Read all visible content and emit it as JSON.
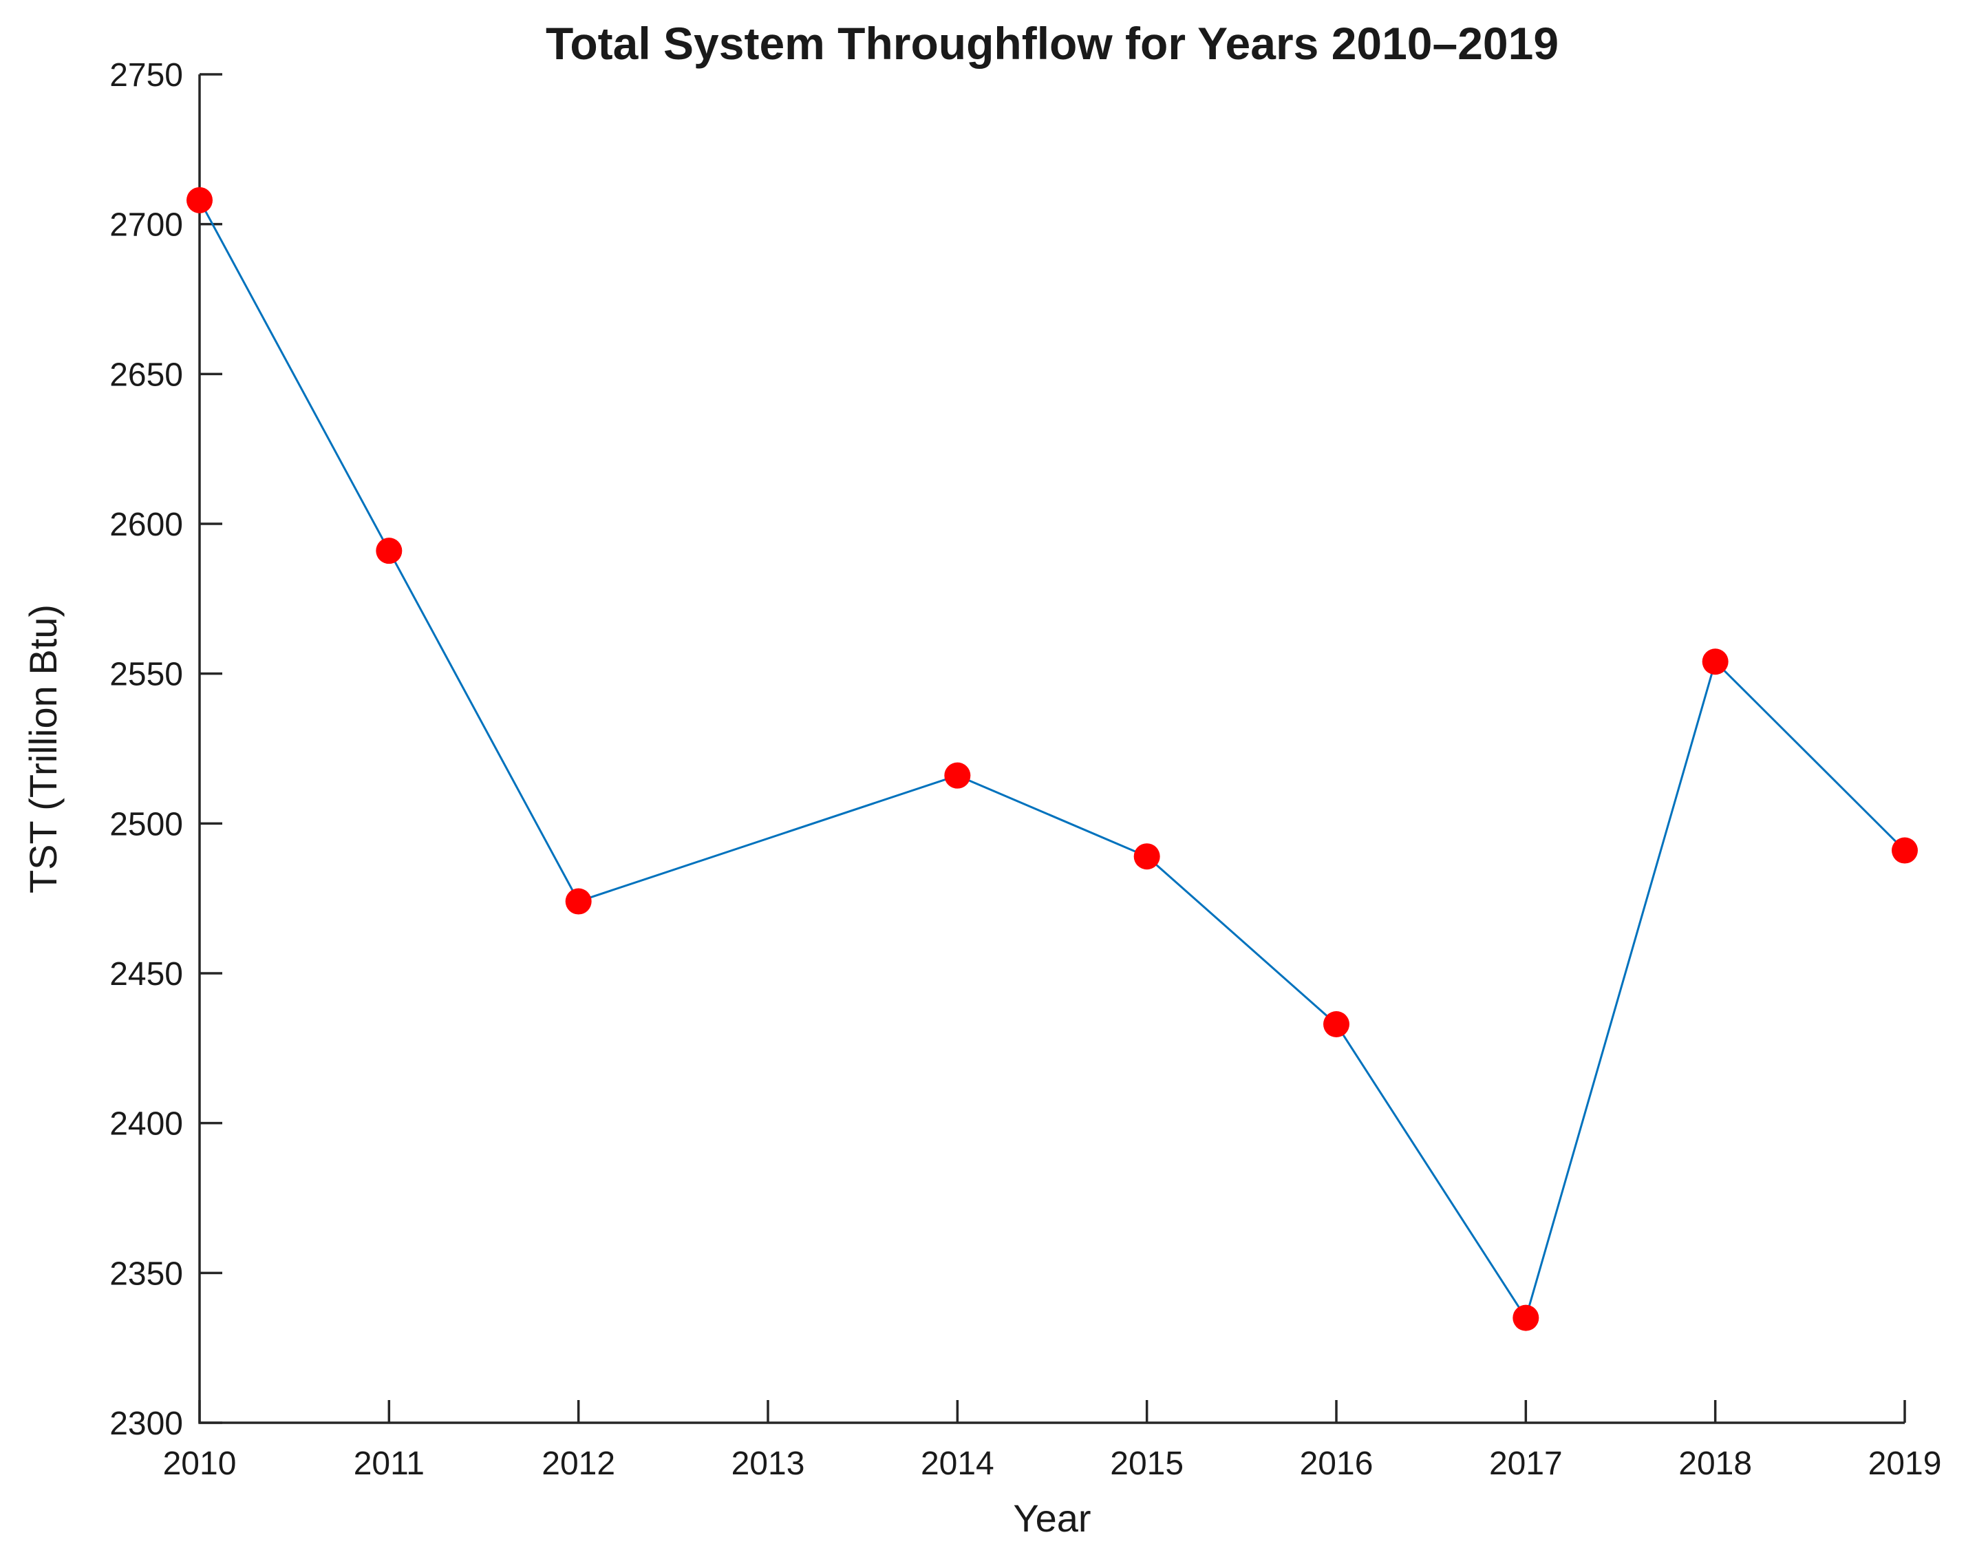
{
  "chart_data": {
    "type": "line",
    "title": "Total System Throughflow for Years 2010–2019",
    "xlabel": "Year",
    "ylabel": "TST (Trillion Btu)",
    "x": [
      2010,
      2011,
      2012,
      2014,
      2015,
      2016,
      2017,
      2018,
      2019
    ],
    "values": [
      2708,
      2591,
      2474,
      2516,
      2489,
      2433,
      2335,
      2554,
      2491
    ],
    "series": [
      {
        "name": "Total System Throughflow",
        "x": [
          2010,
          2011,
          2012,
          2014,
          2015,
          2016,
          2017,
          2018,
          2019
        ],
        "values": [
          2708,
          2591,
          2474,
          2516,
          2489,
          2433,
          2335,
          2554,
          2491
        ]
      }
    ],
    "xlim": [
      2010,
      2019
    ],
    "ylim": [
      2300,
      2750
    ],
    "x_ticks": [
      2010,
      2011,
      2012,
      2013,
      2014,
      2015,
      2016,
      2017,
      2018,
      2019
    ],
    "y_ticks": [
      2300,
      2350,
      2400,
      2450,
      2500,
      2550,
      2600,
      2650,
      2700,
      2750
    ],
    "grid": false,
    "legend_position": "none",
    "colors": {
      "line": "#0072BD",
      "marker": "#FF0000",
      "axis": "#262626",
      "background": "#FFFFFF"
    }
  }
}
